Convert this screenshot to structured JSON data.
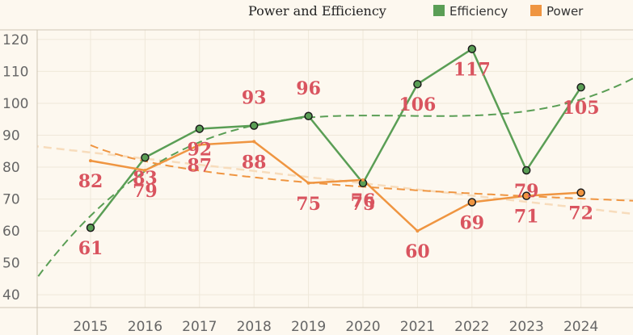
{
  "colors": {
    "background": "#fdf8ef",
    "grid": "#efe8da",
    "axis": "#cfc6b6",
    "efficiency": "#5a9e55",
    "power": "#ef9541",
    "label": "#d9545f",
    "trend_power_linear": "#f7dcbc",
    "marker_fill_efficiency": "#5a9e55",
    "marker_fill_power": "#ef9541",
    "marker_stroke": "#1c1c1c"
  },
  "chart_data": {
    "type": "line",
    "title": "Power and Efficiency",
    "xlabel": "",
    "ylabel": "",
    "categories": [
      "2015",
      "2016",
      "2017",
      "2018",
      "2019",
      "2020",
      "2021",
      "2022",
      "2023",
      "2024"
    ],
    "ylim": [
      36,
      123
    ],
    "yticks": [
      40,
      50,
      60,
      70,
      80,
      90,
      100,
      110,
      120
    ],
    "grid": true,
    "legend": "top",
    "series": [
      {
        "name": "Efficiency",
        "values": [
          61,
          83,
          92,
          93,
          96,
          75,
          106,
          117,
          79,
          105
        ],
        "markers": [
          true,
          true,
          true,
          true,
          true,
          true,
          true,
          true,
          true,
          true
        ],
        "trend": "polynomial"
      },
      {
        "name": "Power",
        "values": [
          82,
          79,
          87,
          88,
          75,
          76,
          60,
          69,
          71,
          72
        ],
        "markers": [
          false,
          false,
          false,
          false,
          false,
          false,
          false,
          true,
          true,
          true
        ],
        "trend": "logarithmic+linear"
      }
    ]
  }
}
